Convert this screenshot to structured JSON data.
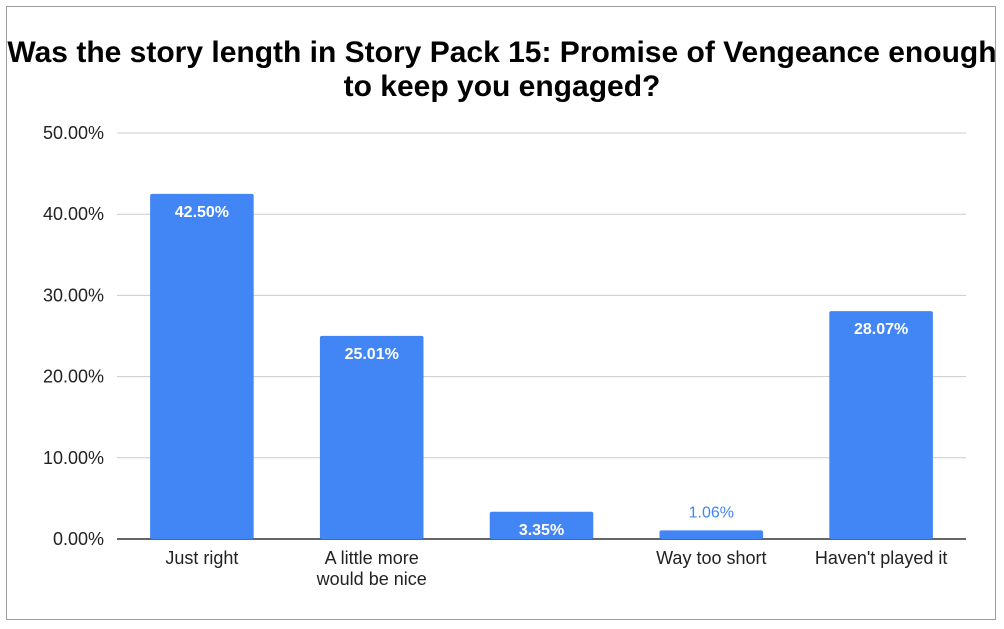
{
  "chart_data": {
    "type": "bar",
    "title": "Was the story length in Story Pack 15: Promise of Vengeance enough to keep you engaged?",
    "categories": [
      [
        "Just right"
      ],
      [
        "A little more",
        "would be nice"
      ],
      [
        ""
      ],
      [
        "Way too short"
      ],
      [
        "Haven't played it"
      ]
    ],
    "values": [
      42.5,
      25.01,
      3.35,
      1.06,
      28.07
    ],
    "data_labels": [
      "42.50%",
      "25.01%",
      "3.35%",
      "1.06%",
      "28.07%"
    ],
    "y_ticks": [
      "0.00%",
      "10.00%",
      "20.00%",
      "30.00%",
      "40.00%",
      "50.00%"
    ],
    "ylim": [
      0,
      50
    ],
    "grid": true,
    "legend": "none",
    "colors": {
      "bar": "#4285f4",
      "grid": "#cccccc",
      "axis": "#333333",
      "label_inside": "#ffffff",
      "label_outside": "#4285f4"
    }
  }
}
